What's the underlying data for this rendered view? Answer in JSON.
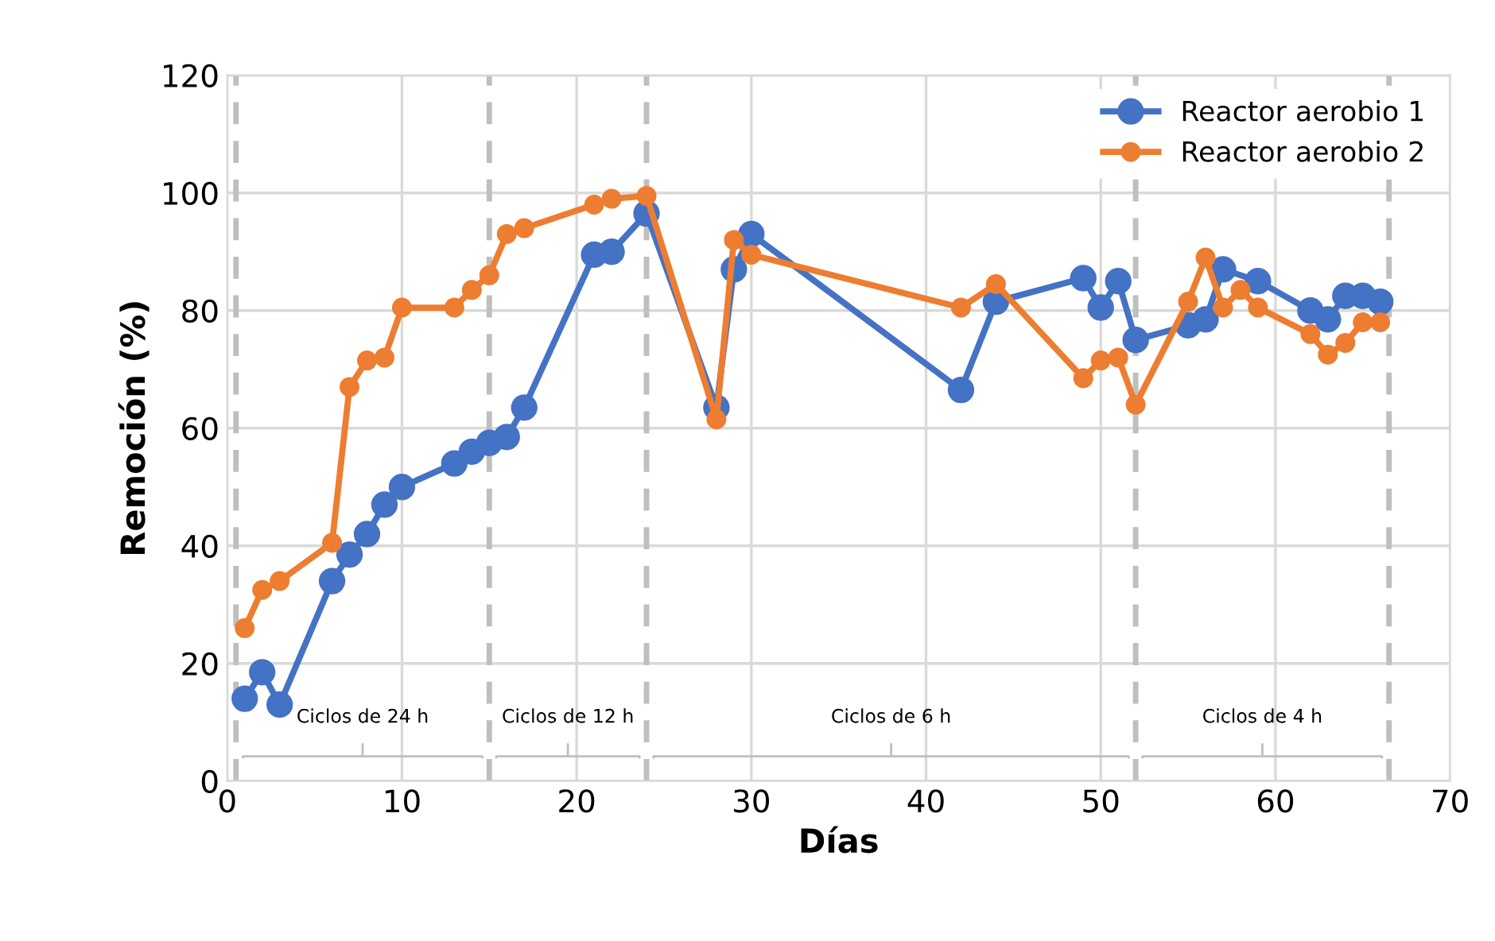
{
  "chart_data": {
    "type": "line",
    "xlabel": "Días",
    "ylabel": "Remoción (%)",
    "xlim": [
      0,
      70
    ],
    "xticks": [
      0,
      10,
      20,
      30,
      40,
      50,
      60,
      70
    ],
    "ylim": [
      0,
      120
    ],
    "yticks": [
      0,
      20,
      40,
      60,
      80,
      100,
      120
    ],
    "grid": true,
    "legend": "top right",
    "marker": "circle",
    "line_style": "solid",
    "series": [
      {
        "name": "Reactor aerobio 1",
        "color": "#4472c4",
        "x": [
          1,
          2,
          3,
          6,
          7,
          8,
          9,
          10,
          13,
          14,
          15,
          16,
          17,
          21,
          22,
          24,
          28,
          29,
          30,
          42,
          44,
          49,
          50,
          51,
          52,
          55,
          56,
          57,
          59,
          62,
          63,
          64,
          65,
          66
        ],
        "values": [
          14,
          18.5,
          13,
          34,
          38.5,
          42,
          47,
          50,
          54,
          56,
          57.5,
          58.5,
          63.5,
          89.5,
          90,
          96.5,
          63.5,
          87,
          93,
          66.5,
          81.5,
          85.5,
          80.5,
          85,
          75,
          77.5,
          78.5,
          87,
          85,
          80,
          78.5,
          82.5,
          82.5,
          81.5
        ]
      },
      {
        "name": "Reactor aerobio 2",
        "color": "#ed7d31",
        "x": [
          1,
          2,
          3,
          6,
          7,
          8,
          9,
          10,
          13,
          14,
          15,
          16,
          17,
          21,
          22,
          24,
          28,
          29,
          30,
          42,
          44,
          49,
          50,
          51,
          52,
          55,
          56,
          57,
          58,
          59,
          62,
          63,
          64,
          65,
          66
        ],
        "values": [
          26,
          32.5,
          34,
          40.5,
          67,
          71.5,
          72,
          80.5,
          80.5,
          83.5,
          86,
          93,
          94,
          98,
          99,
          99.5,
          61.5,
          92,
          89.5,
          80.5,
          84.5,
          68.5,
          71.5,
          72,
          64,
          81.5,
          89,
          80.5,
          83.5,
          80.5,
          76,
          72.5,
          74.5,
          78,
          78
        ]
      }
    ],
    "ref_lines": [
      {
        "axis": "x",
        "value": 0.5,
        "color": "#bfbfbf",
        "line_style": "dashed"
      },
      {
        "axis": "x",
        "value": 15,
        "color": "#bfbfbf",
        "line_style": "dashed"
      },
      {
        "axis": "x",
        "value": 24,
        "color": "#bfbfbf",
        "line_style": "dashed"
      },
      {
        "axis": "x",
        "value": 52,
        "color": "#bfbfbf",
        "line_style": "dashed"
      },
      {
        "axis": "x",
        "value": 66.5,
        "color": "#bfbfbf",
        "line_style": "dashed"
      }
    ],
    "annotations": [
      "Ciclos de 24 h",
      "Ciclos de 12 h",
      "Ciclos de 6 h",
      "Ciclos de 4 h"
    ]
  }
}
